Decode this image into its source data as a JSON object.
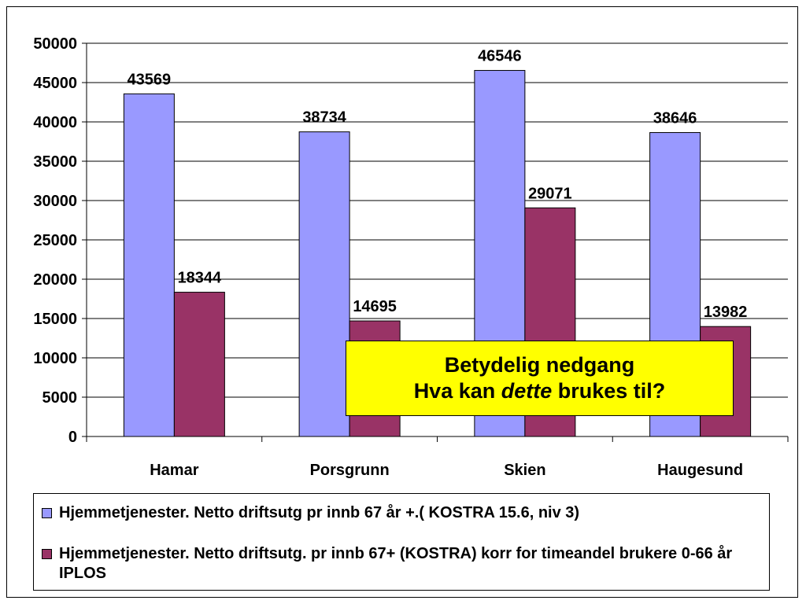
{
  "chart_data": {
    "type": "bar",
    "categories": [
      "Hamar",
      "Porsgrunn",
      "Skien",
      "Haugesund"
    ],
    "series": [
      {
        "name": "Hjemmetjenester. Netto driftsutg pr innb 67 år +.( KOSTRA 15.6, niv 3)",
        "color": "#9999ff",
        "values": [
          43569,
          38734,
          46546,
          38646
        ]
      },
      {
        "name": "Hjemmetjenester. Netto driftsutg. pr innb 67+ (KOSTRA) korr for timeandel brukere 0-66 år IPLOS",
        "color": "#993366",
        "values": [
          18344,
          14695,
          29071,
          13982
        ]
      }
    ],
    "ylim": [
      0,
      50000
    ],
    "yticks": [
      0,
      5000,
      10000,
      15000,
      20000,
      25000,
      30000,
      35000,
      40000,
      45000,
      50000
    ],
    "grid": true,
    "legend_position": "bottom"
  },
  "callout": {
    "line1": "Betydelig nedgang",
    "line2_pre": "Hva kan ",
    "line2_em": "dette",
    "line2_post": " brukes til?"
  }
}
